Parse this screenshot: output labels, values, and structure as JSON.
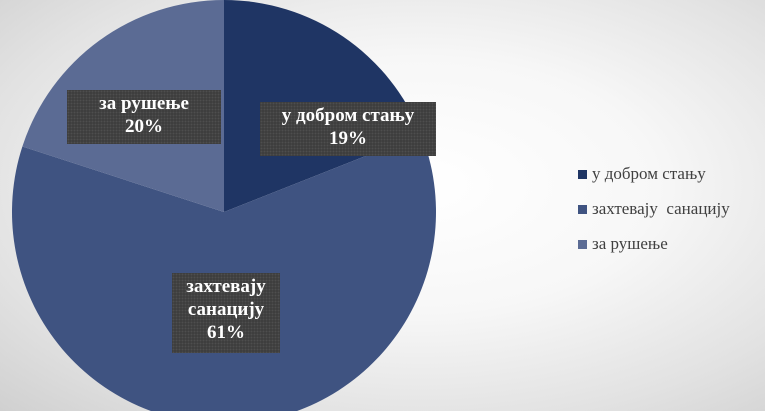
{
  "chart_data": {
    "type": "pie",
    "categories": [
      "у добром стању",
      "захтевају санацију",
      "за рушење"
    ],
    "values": [
      19,
      61,
      20
    ],
    "colors": [
      "#1f3564",
      "#3f5381",
      "#5b6b94"
    ],
    "data_labels": [
      {
        "category": "у добром стању",
        "text": "у добром стању",
        "percent": "19%"
      },
      {
        "category": "захтевају санацију",
        "text_line1": "захтевају",
        "text_line2": "санацију",
        "percent": "61%"
      },
      {
        "category": "за рушење",
        "text": "за рушење",
        "percent": "20%"
      }
    ],
    "legend": {
      "position": "right",
      "entries": [
        "у добром стању",
        "захтевају  санацију",
        "за рушење"
      ]
    }
  }
}
